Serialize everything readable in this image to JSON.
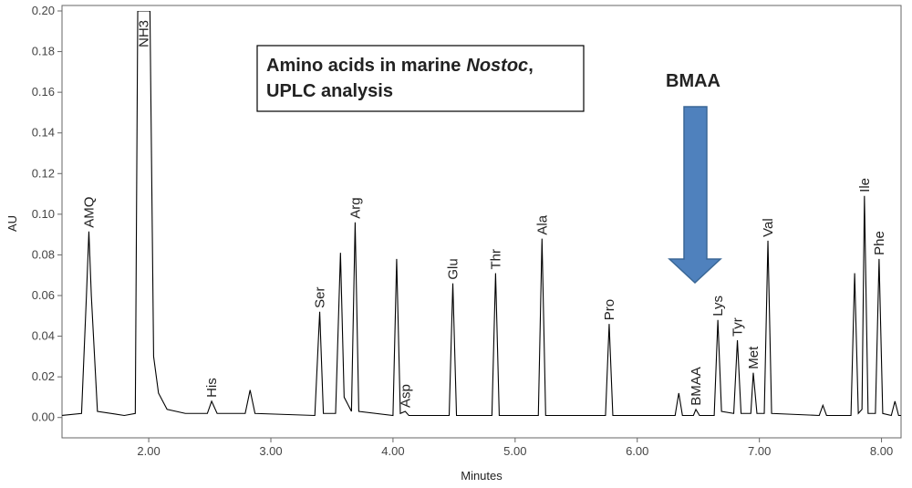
{
  "chart_data": {
    "type": "line",
    "x_label": "Minutes",
    "y_label": "AU",
    "color": "#000000",
    "xlim": [
      1.29,
      8.16
    ],
    "ylim": [
      -0.01,
      0.2
    ],
    "xticks": [
      {
        "value": 2,
        "label": "2.00"
      },
      {
        "value": 3,
        "label": "3.00"
      },
      {
        "value": 4,
        "label": "4.00"
      },
      {
        "value": 5,
        "label": "5.00"
      },
      {
        "value": 6,
        "label": "6.00"
      },
      {
        "value": 7,
        "label": "7.00"
      },
      {
        "value": 8,
        "label": "8.00"
      }
    ],
    "yticks": [
      {
        "value": 0,
        "label": "0.00"
      },
      {
        "value": 0.02,
        "label": "0.02"
      },
      {
        "value": 0.04,
        "label": "0.04"
      },
      {
        "value": 0.06,
        "label": "0.06"
      },
      {
        "value": 0.08,
        "label": "0.08"
      },
      {
        "value": 0.1,
        "label": "0.10"
      },
      {
        "value": 0.12,
        "label": "0.12"
      },
      {
        "value": 0.14,
        "label": "0.14"
      },
      {
        "value": 0.16,
        "label": "0.16"
      },
      {
        "value": 0.18,
        "label": "0.18"
      },
      {
        "value": 0.2,
        "label": "0.20"
      }
    ],
    "x": [
      1.29,
      1.45,
      1.49,
      1.51,
      1.53,
      1.58,
      1.8,
      1.89,
      1.91,
      2.01,
      2.04,
      2.08,
      2.15,
      2.3,
      2.48,
      2.515,
      2.56,
      2.79,
      2.83,
      2.87,
      3.36,
      3.4,
      3.43,
      3.53,
      3.57,
      3.6,
      3.66,
      3.69,
      3.72,
      4.0,
      4.03,
      4.06,
      4.1,
      4.13,
      4.46,
      4.49,
      4.52,
      4.81,
      4.84,
      4.87,
      5.19,
      5.22,
      5.25,
      5.74,
      5.77,
      5.8,
      6.31,
      6.34,
      6.37,
      6.46,
      6.48,
      6.51,
      6.63,
      6.66,
      6.69,
      6.79,
      6.82,
      6.85,
      6.93,
      6.95,
      6.98,
      7.04,
      7.07,
      7.1,
      7.49,
      7.52,
      7.55,
      7.75,
      7.78,
      7.81,
      7.84,
      7.86,
      7.89,
      7.95,
      7.98,
      8.01,
      8.08,
      8.11,
      8.14,
      8.16
    ],
    "values": [
      0.001,
      0.002,
      0.06,
      0.0915,
      0.06,
      0.003,
      0.001,
      0.002,
      0.2,
      0.2,
      0.03,
      0.012,
      0.004,
      0.002,
      0.002,
      0.008,
      0.002,
      0.002,
      0.0135,
      0.002,
      0.001,
      0.052,
      0.002,
      0.002,
      0.081,
      0.01,
      0.003,
      0.096,
      0.003,
      0.001,
      0.078,
      0.002,
      0.003,
      0.001,
      0.001,
      0.066,
      0.001,
      0.001,
      0.071,
      0.001,
      0.001,
      0.088,
      0.001,
      0.001,
      0.046,
      0.001,
      0.001,
      0.012,
      0.001,
      0.001,
      0.004,
      0.001,
      0.001,
      0.048,
      0.003,
      0.002,
      0.038,
      0.002,
      0.002,
      0.022,
      0.002,
      0.002,
      0.087,
      0.002,
      0.001,
      0.006,
      0.001,
      0.001,
      0.071,
      0.002,
      0.004,
      0.109,
      0.002,
      0.002,
      0.078,
      0.002,
      0.001,
      0.008,
      0.001,
      0.001
    ],
    "peak_labels": [
      {
        "label": "AMQ",
        "x": 1.51
      },
      {
        "label": "NH3",
        "x": 1.96
      },
      {
        "label": "His",
        "x": 2.515
      },
      {
        "label": "Ser",
        "x": 3.4
      },
      {
        "label": "Arg",
        "x": 3.69
      },
      {
        "label": "Asp",
        "x": 4.1
      },
      {
        "label": "Glu",
        "x": 4.49
      },
      {
        "label": "Thr",
        "x": 4.84
      },
      {
        "label": "Ala",
        "x": 5.22
      },
      {
        "label": "Pro",
        "x": 5.77
      },
      {
        "label": "BMAA",
        "x": 6.48
      },
      {
        "label": "Lys",
        "x": 6.66
      },
      {
        "label": "Tyr",
        "x": 6.82
      },
      {
        "label": "Met",
        "x": 6.95
      },
      {
        "label": "Val",
        "x": 7.07
      },
      {
        "label": "Ile",
        "x": 7.86
      },
      {
        "label": "Phe",
        "x": 7.98
      }
    ],
    "annotation_box": {
      "line1": [
        "Amino acids in marine",
        "Nostoc",
        ","
      ],
      "line2": "UPLC analysis"
    },
    "arrow_label": "BMAA"
  }
}
